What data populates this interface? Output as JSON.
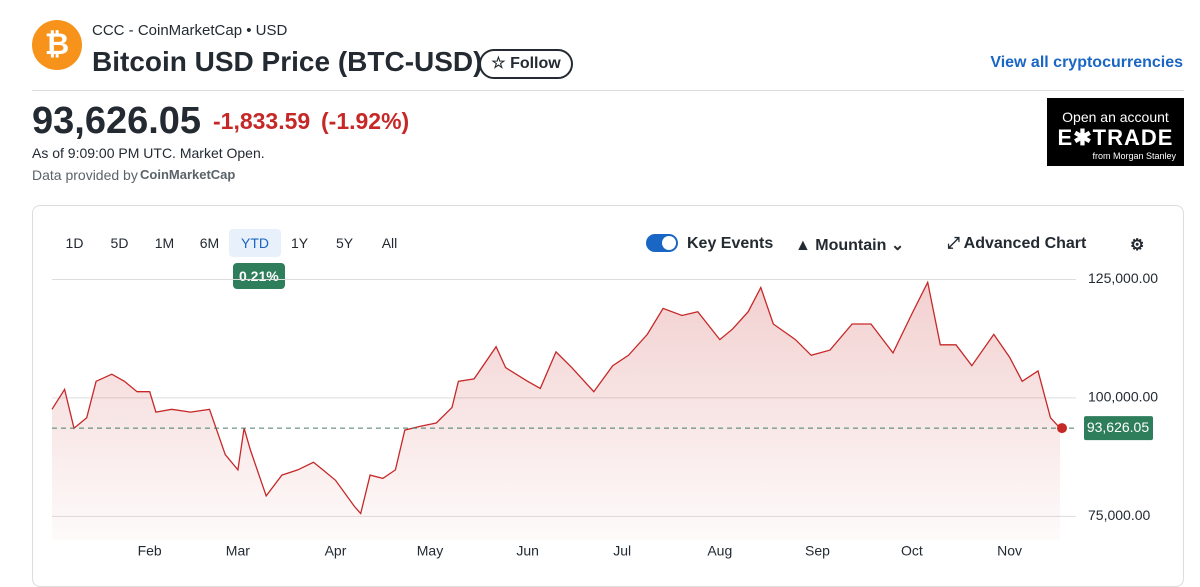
{
  "header": {
    "source": "CCC - CoinMarketCap • USD",
    "title": "Bitcoin USD Price (BTC-USD)",
    "follow": "Follow",
    "view_all": "View all cryptocurrencies"
  },
  "quote": {
    "change": "-1,833.59",
    "change_pct": "(-1.92%)",
    "as_of": "As of 9:09:00 PM UTC. Market Open.",
    "provided_by": "Data provided by",
    "provider": "CoinMarketCap"
  },
  "ad": {
    "line1": "Open an account",
    "brand": "E✱TRADE",
    "sub": "from Morgan Stanley"
  },
  "toolbar": {
    "ranges": [
      "1D",
      "5D",
      "1M",
      "6M",
      "YTD",
      "1Y",
      "5Y",
      "All"
    ],
    "range_change": "0.21%",
    "key_events": "Key Events",
    "chart_style": "Mountain",
    "advanced": "Advanced Chart"
  },
  "chart_data": {
    "type": "area",
    "color": "#c62828",
    "x": [
      0,
      4,
      7,
      11,
      14,
      19,
      23,
      27,
      31,
      33,
      38,
      44,
      50,
      55,
      59,
      61,
      63,
      68,
      73,
      78,
      83,
      86,
      90,
      96,
      98,
      101,
      105,
      109,
      112,
      117,
      122,
      127,
      129,
      134,
      141,
      144,
      151,
      155,
      160,
      165,
      172,
      178,
      183,
      189,
      194,
      200,
      205,
      212,
      216,
      221,
      225,
      229,
      236,
      241,
      247,
      254,
      260,
      267,
      273,
      278,
      282,
      287,
      292,
      299,
      304,
      308,
      313,
      317,
      320
    ],
    "values": [
      97600,
      101800,
      93600,
      95800,
      103500,
      105000,
      103500,
      101300,
      101300,
      97000,
      97600,
      97000,
      97600,
      88000,
      84800,
      93600,
      89000,
      79300,
      83700,
      84800,
      86400,
      84800,
      82600,
      77100,
      75600,
      83700,
      83000,
      84800,
      93200,
      94000,
      94700,
      98000,
      103500,
      104000,
      110800,
      106400,
      103500,
      102000,
      109700,
      106400,
      101300,
      106800,
      109000,
      113400,
      118900,
      117400,
      118200,
      112300,
      114500,
      118200,
      123300,
      115600,
      112300,
      109000,
      110100,
      115600,
      115600,
      109500,
      117800,
      124400,
      111200,
      111200,
      106800,
      113400,
      108600,
      103500,
      105700,
      95800,
      93626.05
    ],
    "xlim": [
      0,
      320
    ],
    "xticks": [
      {
        "value": 31,
        "label": "Feb"
      },
      {
        "value": 59,
        "label": "Mar"
      },
      {
        "value": 90,
        "label": "Apr"
      },
      {
        "value": 120,
        "label": "May"
      },
      {
        "value": 151,
        "label": "Jun"
      },
      {
        "value": 181,
        "label": "Jul"
      },
      {
        "value": 212,
        "label": "Aug"
      },
      {
        "value": 243,
        "label": "Sep"
      },
      {
        "value": 273,
        "label": "Oct"
      },
      {
        "value": 304,
        "label": "Nov"
      }
    ],
    "ylim": [
      70000,
      127000
    ],
    "yticks": [
      {
        "value": 75000,
        "label": "75,000.00"
      },
      {
        "value": 100000,
        "label": "100,000.00"
      },
      {
        "value": 125000,
        "label": "125,000.00"
      }
    ],
    "grid": true,
    "last_price": {
      "value": 93626.05,
      "label": "93,626.05"
    }
  }
}
